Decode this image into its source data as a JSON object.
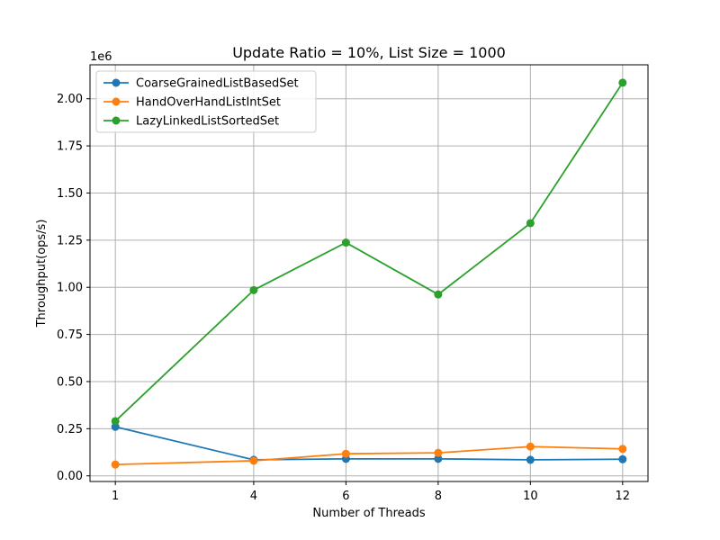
{
  "chart_data": {
    "type": "line",
    "title": "Update Ratio = 10%, List Size = 1000",
    "xlabel": "Number of Threads",
    "ylabel": "Throughput(ops/s)",
    "y_offset_label": "1e6",
    "x": [
      1,
      4,
      6,
      8,
      10,
      12
    ],
    "x_tick_labels": [
      "1",
      "4",
      "6",
      "8",
      "10",
      "12"
    ],
    "xlim": [
      0.45,
      12.55
    ],
    "ylim": [
      -30000,
      2180000
    ],
    "y_ticks": [
      0,
      250000,
      500000,
      750000,
      1000000,
      1250000,
      1500000,
      1750000,
      2000000
    ],
    "y_tick_labels": [
      "0.00",
      "0.25",
      "0.50",
      "0.75",
      "1.00",
      "1.25",
      "1.50",
      "1.75",
      "2.00"
    ],
    "grid": true,
    "legend_position": "top-left",
    "series": [
      {
        "name": "CoarseGrainedListBasedSet",
        "color": "#1f77b4",
        "values": [
          260000,
          85000,
          90000,
          90000,
          85000,
          88000
        ]
      },
      {
        "name": "HandOverHandListIntSet",
        "color": "#ff7f0e",
        "values": [
          60000,
          80000,
          117000,
          122000,
          155000,
          143000
        ]
      },
      {
        "name": "LazyLinkedListSortedSet",
        "color": "#2ca02c",
        "values": [
          290000,
          985000,
          1237000,
          962000,
          1340000,
          2085000
        ]
      }
    ]
  }
}
